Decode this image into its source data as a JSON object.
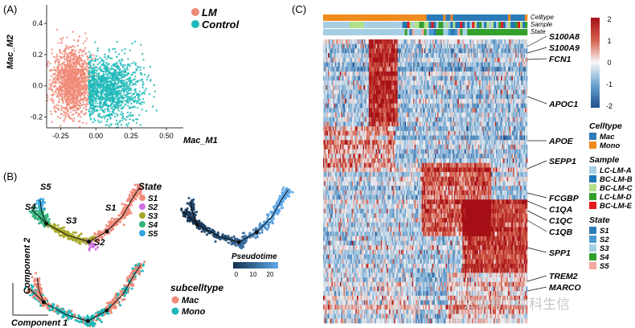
{
  "panels": {
    "A": {
      "label": "(A)",
      "xlabel": "Mac_M1",
      "ylabel": "Mac_M2",
      "xticks": [
        "-0.25",
        "0.00",
        "0.25",
        "0.50"
      ],
      "yticks": [
        "0.4",
        "0.2",
        "0.0",
        "-0.2"
      ],
      "legend": [
        {
          "name": "LM",
          "color": "#f08a78"
        },
        {
          "name": "Control",
          "color": "#1fb8b8"
        }
      ]
    },
    "B": {
      "label": "(B)",
      "state_title": "State",
      "states": [
        {
          "name": "S1",
          "color": "#f08a78"
        },
        {
          "name": "S2",
          "color": "#d06fe0"
        },
        {
          "name": "S3",
          "color": "#a7a829"
        },
        {
          "name": "S4",
          "color": "#32b37a"
        },
        {
          "name": "S5",
          "color": "#36a6e4"
        }
      ],
      "branch_labels": [
        "S5",
        "S4",
        "S3",
        "S1",
        "S2"
      ],
      "pseudotime_title": "Pseudotime",
      "pseudotime_ticks": [
        "0",
        "10",
        "20"
      ],
      "subcelltype_title": "subcelltype",
      "subcelltypes": [
        {
          "name": "Mac",
          "color": "#f08a78"
        },
        {
          "name": "Mono",
          "color": "#1fb8b8"
        }
      ],
      "ylabel": "Component 2",
      "xlabel": "Component 1"
    },
    "C": {
      "label": "(C)",
      "annotation_rows": [
        "Celltype",
        "Sample",
        "State"
      ],
      "genes": [
        "S100A8",
        "S100A9",
        "FCN1",
        "APOC1",
        "APOE",
        "SEPP1",
        "FCGBP",
        "C1QA",
        "C1QC",
        "C1QB",
        "SPP1",
        "TREM2",
        "MARCO"
      ],
      "colorbar_ticks": [
        "2",
        "1",
        "0",
        "-1",
        "-2"
      ],
      "legends": [
        {
          "title": "Celltype",
          "items": [
            {
              "name": "Mac",
              "color": "#2c7bb6"
            },
            {
              "name": "Mono",
              "color": "#f08c1e"
            }
          ]
        },
        {
          "title": "Sample",
          "items": [
            {
              "name": "LC-LM-A",
              "color": "#a6cee3"
            },
            {
              "name": "BC-LM-B",
              "color": "#1f78b4"
            },
            {
              "name": "BC-LM-C",
              "color": "#b2df8a"
            },
            {
              "name": "LC-LM-D",
              "color": "#33a02c"
            },
            {
              "name": "BC-LM-E",
              "color": "#e31a1c"
            }
          ]
        },
        {
          "title": "State",
          "items": [
            {
              "name": "S1",
              "color": "#2c7bb6"
            },
            {
              "name": "S2",
              "color": "#4a9ad0"
            },
            {
              "name": "S3",
              "color": "#a6cee3"
            },
            {
              "name": "S4",
              "color": "#33a02c"
            },
            {
              "name": "S5",
              "color": "#f4a6a0"
            }
          ]
        }
      ]
    }
  },
  "watermark": "公众号 · 中科生信",
  "chart_data": [
    {
      "type": "scatter",
      "xlabel": "Mac_M1",
      "ylabel": "Mac_M2",
      "xlim": [
        -0.35,
        0.62
      ],
      "ylim": [
        -0.27,
        0.52
      ],
      "series": [
        {
          "name": "LM",
          "color": "#f08a78",
          "center": [
            -0.17,
            0.03
          ],
          "spread": [
            0.07,
            0.11
          ],
          "n": 1300
        },
        {
          "name": "Control",
          "color": "#1fb8b8",
          "center": [
            0.1,
            -0.02
          ],
          "spread": [
            0.12,
            0.1
          ],
          "n": 1300
        }
      ]
    },
    {
      "type": "scatter",
      "xlabel": "Component 1",
      "ylabel": "Component 2",
      "series": [
        {
          "name": "S1"
        },
        {
          "name": "S2"
        },
        {
          "name": "S3"
        },
        {
          "name": "S4"
        },
        {
          "name": "S5"
        }
      ]
    },
    {
      "type": "heatmap",
      "genes": [
        "S100A8",
        "S100A9",
        "FCN1",
        "APOC1",
        "APOE",
        "SEPP1",
        "FCGBP",
        "C1QA",
        "C1QC",
        "C1QB",
        "SPP1",
        "TREM2",
        "MARCO"
      ],
      "zlim": [
        -2,
        2
      ]
    }
  ]
}
